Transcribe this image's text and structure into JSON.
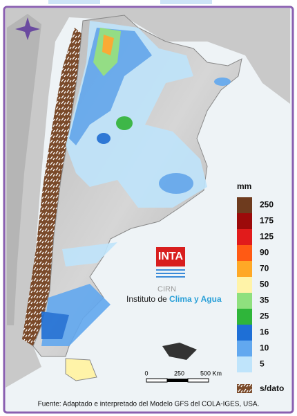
{
  "legend": {
    "title": "mm",
    "items": [
      {
        "value": 250,
        "color": "#6e3b1e"
      },
      {
        "value": 175,
        "color": "#9c0a0a"
      },
      {
        "value": 125,
        "color": "#e11b1b"
      },
      {
        "value": 90,
        "color": "#ff5a14"
      },
      {
        "value": 70,
        "color": "#ffa826"
      },
      {
        "value": 50,
        "color": "#fff3a8"
      },
      {
        "value": 35,
        "color": "#8fe07e"
      },
      {
        "value": 25,
        "color": "#2fb53a"
      },
      {
        "value": 16,
        "color": "#1e6fd6"
      },
      {
        "value": 10,
        "color": "#62a8ef"
      },
      {
        "value": 5,
        "color": "#bfe4fb"
      }
    ],
    "nodata": "s/dato"
  },
  "scale": {
    "labels": [
      "0",
      "250",
      "500 Km"
    ]
  },
  "logo": {
    "name": "INTA",
    "sub": "CIRN",
    "institute": "Instituto de ",
    "institute_highlight": "Clima y Agua"
  },
  "footer": "Fuente: Adaptado e interpretado del Modelo GFS del COLA-IGES, USA."
}
